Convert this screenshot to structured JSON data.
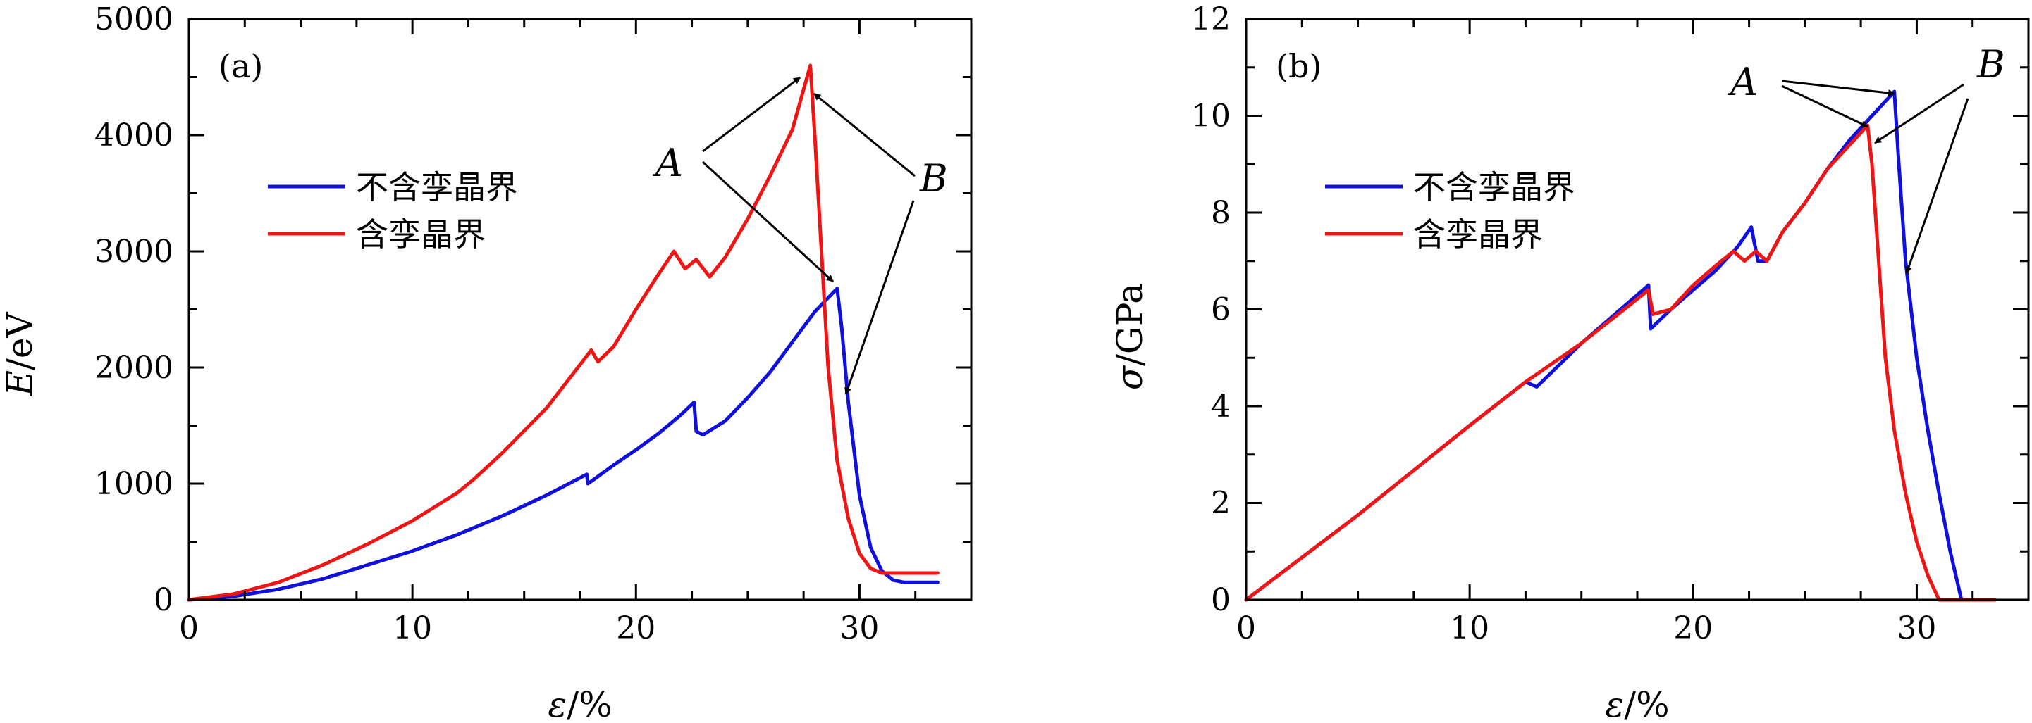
{
  "colors": {
    "no_twin": "#1010dd",
    "twin": "#ee1515"
  },
  "chart_data": [
    {
      "type": "line",
      "panel_label": "(a)",
      "xlabel_sym": "ε",
      "xlabel_unit": "/%",
      "ylabel_sym": "E",
      "ylabel_unit": "/eV",
      "xlim": [
        0,
        35
      ],
      "ylim": [
        0,
        5000
      ],
      "xticks": [
        0,
        10,
        20,
        30
      ],
      "yticks": [
        0,
        1000,
        2000,
        3000,
        4000,
        5000
      ],
      "legend": [
        "不含孪晶界",
        "含孪晶界"
      ],
      "annotations": {
        "A": "A",
        "B": "B"
      },
      "series": [
        {
          "name": "不含孪晶界",
          "x": [
            0,
            2,
            4,
            6,
            8,
            10,
            12,
            14,
            16,
            17.8,
            17.85,
            18,
            19,
            20,
            21,
            22,
            22.6,
            22.7,
            23,
            24,
            25,
            26,
            27,
            28,
            29.0,
            29.2,
            29.5,
            30,
            30.5,
            31,
            31.5,
            32,
            33.5
          ],
          "y": [
            0,
            30,
            90,
            180,
            300,
            420,
            560,
            720,
            900,
            1080,
            1000,
            1020,
            1160,
            1290,
            1430,
            1590,
            1700,
            1450,
            1420,
            1540,
            1740,
            1960,
            2220,
            2480,
            2680,
            2350,
            1700,
            900,
            450,
            250,
            170,
            150,
            150
          ]
        },
        {
          "name": "含孪晶界",
          "x": [
            0,
            2,
            4,
            6,
            8,
            10,
            12,
            12.7,
            14,
            16,
            18.0,
            18.3,
            19,
            20,
            21,
            21.7,
            22.2,
            22.7,
            23.3,
            24,
            25,
            26,
            27,
            27.8,
            28.0,
            28.3,
            28.6,
            29,
            29.5,
            30,
            30.5,
            31,
            31.5,
            32,
            33.5
          ],
          "y": [
            0,
            50,
            150,
            300,
            480,
            680,
            920,
            1030,
            1260,
            1650,
            2150,
            2050,
            2180,
            2500,
            2800,
            3000,
            2850,
            2930,
            2780,
            2950,
            3280,
            3650,
            4050,
            4600,
            4000,
            3000,
            2000,
            1200,
            700,
            400,
            270,
            230,
            230,
            230,
            230
          ]
        }
      ]
    },
    {
      "type": "line",
      "panel_label": "(b)",
      "xlabel_sym": "ε",
      "xlabel_unit": "/%",
      "ylabel_sym": "σ",
      "ylabel_unit": "/GPa",
      "xlim": [
        0,
        35
      ],
      "ylim": [
        0,
        12
      ],
      "xticks": [
        0,
        10,
        20,
        30
      ],
      "yticks": [
        0,
        2,
        4,
        6,
        8,
        10,
        12
      ],
      "legend": [
        "不含孪晶界",
        "含孪晶界"
      ],
      "annotations": {
        "A": "A",
        "B": "B"
      },
      "series": [
        {
          "name": "不含孪晶界",
          "x": [
            0,
            5,
            10,
            12.5,
            13,
            15,
            18,
            18.1,
            19,
            20,
            21,
            22,
            22.6,
            22.9,
            23.3,
            24,
            25,
            26,
            27,
            28,
            29.0,
            29.2,
            29.5,
            30,
            30.5,
            31,
            31.5,
            32,
            33.5
          ],
          "y": [
            0,
            1.75,
            3.6,
            4.5,
            4.4,
            5.3,
            6.5,
            5.6,
            6.0,
            6.4,
            6.8,
            7.3,
            7.7,
            7.0,
            7.0,
            7.6,
            8.2,
            8.9,
            9.5,
            10.0,
            10.5,
            9.0,
            7.0,
            5.0,
            3.5,
            2.2,
            1.0,
            0,
            0
          ]
        },
        {
          "name": "含孪晶界",
          "x": [
            0,
            5,
            10,
            12.5,
            15,
            18,
            18.2,
            19,
            20,
            21,
            21.8,
            22.3,
            22.8,
            23.3,
            24,
            25,
            26,
            27,
            27.8,
            28.0,
            28.3,
            28.6,
            29,
            29.5,
            30,
            30.5,
            31,
            33.5
          ],
          "y": [
            0,
            1.75,
            3.6,
            4.5,
            5.3,
            6.4,
            5.9,
            6.0,
            6.5,
            6.9,
            7.2,
            7.0,
            7.2,
            7.0,
            7.6,
            8.2,
            8.9,
            9.4,
            9.8,
            9.0,
            7.0,
            5.0,
            3.5,
            2.2,
            1.2,
            0.5,
            0,
            0
          ]
        }
      ]
    }
  ]
}
